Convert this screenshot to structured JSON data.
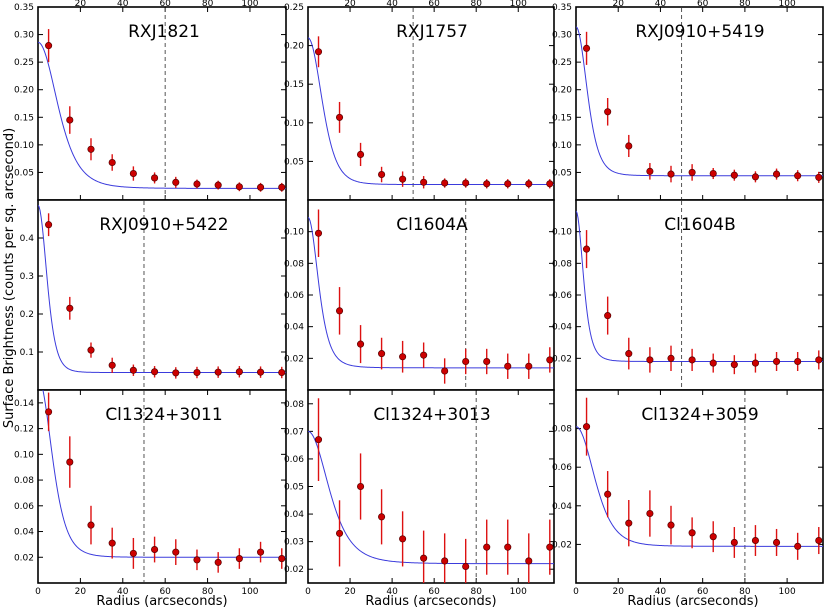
{
  "figure": {
    "ylabel": "Surface Brightness (counts per sq. arcsecond)",
    "xlabel": "Radius (arcseconds)"
  },
  "colors": {
    "fit": "#3b3bdc",
    "marker": "#cc0000",
    "errorbar": "#dd1111",
    "rmax_line": "#555555"
  },
  "chart_data": [
    {
      "type": "scatter",
      "title": "RXJ1821",
      "xlim": [
        0,
        117
      ],
      "ylim": [
        0,
        0.35
      ],
      "xticks": [
        20,
        40,
        60,
        80,
        100
      ],
      "xticks_position": "top",
      "yticks": [
        0.05,
        0.1,
        0.15,
        0.2,
        0.25,
        0.3,
        0.35
      ],
      "ytick_decimals": 2,
      "rmax_line": 60,
      "x": [
        5,
        15,
        25,
        35,
        45,
        55,
        65,
        75,
        85,
        95,
        105,
        115
      ],
      "y": [
        0.28,
        0.145,
        0.092,
        0.068,
        0.048,
        0.04,
        0.032,
        0.029,
        0.027,
        0.024,
        0.023,
        0.023
      ],
      "yerr": [
        0.03,
        0.025,
        0.02,
        0.015,
        0.013,
        0.01,
        0.01,
        0.008,
        0.008,
        0.008,
        0.008,
        0.008
      ],
      "fit": {
        "s0": 0.265,
        "rc": 20.0,
        "beta": 1.1,
        "b": 0.021
      }
    },
    {
      "type": "scatter",
      "title": "RXJ1757",
      "xlim": [
        0,
        117
      ],
      "ylim": [
        0,
        0.25
      ],
      "xticks": [
        20,
        40,
        60,
        80,
        100
      ],
      "xticks_position": "top",
      "yticks": [
        0.05,
        0.1,
        0.15,
        0.2,
        0.25
      ],
      "ytick_decimals": 2,
      "rmax_line": 50,
      "x": [
        5,
        15,
        25,
        35,
        45,
        55,
        65,
        75,
        85,
        95,
        105,
        115
      ],
      "y": [
        0.192,
        0.107,
        0.059,
        0.033,
        0.027,
        0.023,
        0.022,
        0.022,
        0.021,
        0.021,
        0.021,
        0.021
      ],
      "yerr": [
        0.02,
        0.02,
        0.015,
        0.01,
        0.01,
        0.008,
        0.006,
        0.006,
        0.006,
        0.006,
        0.006,
        0.006
      ],
      "fit": {
        "s0": 0.19,
        "rc": 16.0,
        "beta": 1.3,
        "b": 0.02
      }
    },
    {
      "type": "scatter",
      "title": "RXJ0910+5419",
      "xlim": [
        0,
        117
      ],
      "ylim": [
        0,
        0.35
      ],
      "xticks": [
        20,
        40,
        60,
        80,
        100
      ],
      "xticks_position": "top",
      "yticks": [
        0.05,
        0.1,
        0.15,
        0.2,
        0.25,
        0.3,
        0.35
      ],
      "ytick_decimals": 2,
      "rmax_line": 50,
      "x": [
        5,
        15,
        25,
        35,
        45,
        55,
        65,
        75,
        85,
        95,
        105,
        115
      ],
      "y": [
        0.275,
        0.16,
        0.098,
        0.052,
        0.047,
        0.05,
        0.048,
        0.045,
        0.042,
        0.047,
        0.044,
        0.041
      ],
      "yerr": [
        0.03,
        0.025,
        0.02,
        0.015,
        0.015,
        0.015,
        0.01,
        0.01,
        0.01,
        0.01,
        0.01,
        0.01
      ],
      "fit": {
        "s0": 0.27,
        "rc": 12.0,
        "beta": 1.2,
        "b": 0.044
      }
    },
    {
      "type": "scatter",
      "title": "RXJ0910+5422",
      "xlim": [
        0,
        117
      ],
      "ylim": [
        0,
        0.5
      ],
      "xticks": [],
      "xticks_position": "none",
      "yticks": [
        0.1,
        0.2,
        0.3,
        0.4
      ],
      "ytick_decimals": 1,
      "rmax_line": 50,
      "x": [
        5,
        15,
        25,
        35,
        45,
        55,
        65,
        75,
        85,
        95,
        105,
        115
      ],
      "y": [
        0.435,
        0.215,
        0.105,
        0.065,
        0.052,
        0.048,
        0.045,
        0.046,
        0.047,
        0.048,
        0.047,
        0.046
      ],
      "yerr": [
        0.03,
        0.03,
        0.02,
        0.02,
        0.015,
        0.015,
        0.015,
        0.015,
        0.015,
        0.015,
        0.015,
        0.015
      ],
      "fit": {
        "s0": 0.44,
        "rc": 10.0,
        "beta": 1.3,
        "b": 0.046
      }
    },
    {
      "type": "scatter",
      "title": "Cl1604A",
      "xlim": [
        0,
        117
      ],
      "ylim": [
        0,
        0.12
      ],
      "xticks": [],
      "xticks_position": "none",
      "yticks": [
        0.02,
        0.04,
        0.06,
        0.08,
        0.1
      ],
      "ytick_decimals": 2,
      "rmax_line": 75,
      "x": [
        5,
        15,
        25,
        35,
        45,
        55,
        65,
        75,
        85,
        95,
        105,
        115
      ],
      "y": [
        0.099,
        0.05,
        0.029,
        0.023,
        0.021,
        0.022,
        0.012,
        0.018,
        0.018,
        0.015,
        0.015,
        0.019
      ],
      "yerr": [
        0.015,
        0.015,
        0.012,
        0.01,
        0.01,
        0.008,
        0.008,
        0.008,
        0.008,
        0.008,
        0.008,
        0.008
      ],
      "fit": {
        "s0": 0.095,
        "rc": 10.0,
        "beta": 1.0,
        "b": 0.014
      }
    },
    {
      "type": "scatter",
      "title": "Cl1604B",
      "xlim": [
        0,
        117
      ],
      "ylim": [
        0,
        0.12
      ],
      "xticks": [],
      "xticks_position": "none",
      "yticks": [
        0.02,
        0.04,
        0.06,
        0.08,
        0.1
      ],
      "ytick_decimals": 2,
      "rmax_line": 50,
      "x": [
        5,
        15,
        25,
        35,
        45,
        55,
        65,
        75,
        85,
        95,
        105,
        115
      ],
      "y": [
        0.089,
        0.047,
        0.023,
        0.019,
        0.02,
        0.019,
        0.017,
        0.016,
        0.017,
        0.018,
        0.018,
        0.019
      ],
      "yerr": [
        0.012,
        0.012,
        0.01,
        0.008,
        0.008,
        0.007,
        0.006,
        0.006,
        0.006,
        0.006,
        0.006,
        0.006
      ],
      "fit": {
        "s0": 0.095,
        "rc": 7.0,
        "beta": 1.0,
        "b": 0.018
      }
    },
    {
      "type": "scatter",
      "title": "Cl1324+3011",
      "xlim": [
        0,
        117
      ],
      "ylim": [
        0,
        0.15
      ],
      "xticks": [
        0,
        20,
        40,
        60,
        80,
        100
      ],
      "xticks_position": "bottom",
      "yticks": [
        0.02,
        0.04,
        0.06,
        0.08,
        0.1,
        0.12,
        0.14
      ],
      "ytick_decimals": 2,
      "rmax_line": 50,
      "x": [
        5,
        15,
        25,
        35,
        45,
        55,
        65,
        75,
        85,
        95,
        105,
        115
      ],
      "y": [
        0.133,
        0.094,
        0.045,
        0.031,
        0.023,
        0.026,
        0.024,
        0.018,
        0.016,
        0.019,
        0.024,
        0.019
      ],
      "yerr": [
        0.015,
        0.02,
        0.015,
        0.012,
        0.012,
        0.01,
        0.01,
        0.008,
        0.008,
        0.008,
        0.008,
        0.008
      ],
      "fit": {
        "s0": 0.14,
        "rc": 15.0,
        "beta": 1.2,
        "b": 0.02
      }
    },
    {
      "type": "scatter",
      "title": "Cl1324+3013",
      "xlim": [
        0,
        117
      ],
      "ylim": [
        0.015,
        0.085
      ],
      "xticks": [
        0,
        20,
        40,
        60,
        80,
        100
      ],
      "xticks_position": "bottom",
      "yticks": [
        0.02,
        0.03,
        0.04,
        0.05,
        0.06,
        0.07,
        0.08
      ],
      "ytick_decimals": 2,
      "rmax_line": 80,
      "x": [
        5,
        15,
        25,
        35,
        45,
        55,
        65,
        75,
        85,
        95,
        105,
        115
      ],
      "y": [
        0.067,
        0.033,
        0.05,
        0.039,
        0.031,
        0.024,
        0.023,
        0.021,
        0.028,
        0.028,
        0.023,
        0.028
      ],
      "yerr": [
        0.015,
        0.012,
        0.012,
        0.01,
        0.01,
        0.01,
        0.01,
        0.01,
        0.01,
        0.01,
        0.01,
        0.01
      ],
      "fit": {
        "s0": 0.048,
        "rc": 20.0,
        "beta": 1.0,
        "b": 0.022
      }
    },
    {
      "type": "scatter",
      "title": "Cl1324+3059",
      "xlim": [
        0,
        117
      ],
      "ylim": [
        0,
        0.1
      ],
      "xticks": [
        0,
        20,
        40,
        60,
        80,
        100
      ],
      "xticks_position": "bottom",
      "yticks": [
        0.02,
        0.04,
        0.06,
        0.08
      ],
      "ytick_decimals": 2,
      "rmax_line": 80,
      "x": [
        5,
        15,
        25,
        35,
        45,
        55,
        65,
        75,
        85,
        95,
        105,
        115
      ],
      "y": [
        0.081,
        0.046,
        0.031,
        0.036,
        0.03,
        0.026,
        0.024,
        0.021,
        0.022,
        0.021,
        0.019,
        0.022
      ],
      "yerr": [
        0.015,
        0.012,
        0.012,
        0.012,
        0.01,
        0.008,
        0.008,
        0.008,
        0.008,
        0.007,
        0.007,
        0.007
      ],
      "fit": {
        "s0": 0.062,
        "rc": 20.0,
        "beta": 1.2,
        "b": 0.019
      }
    }
  ]
}
